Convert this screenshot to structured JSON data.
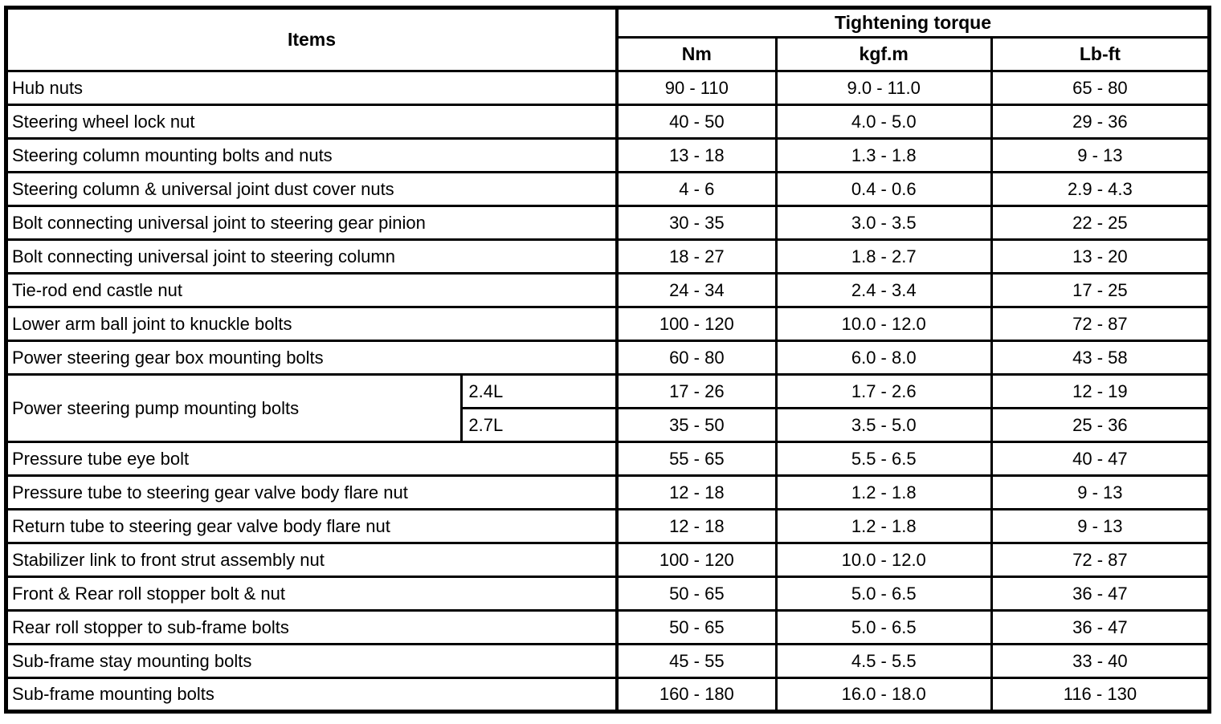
{
  "table": {
    "header": {
      "items_label": "Items",
      "torque_label": "Tightening torque",
      "units": [
        "Nm",
        "kgf.m",
        "Lb-ft"
      ]
    },
    "rows": [
      {
        "item": "Hub nuts",
        "values": [
          "90 - 110",
          "9.0 - 11.0",
          "65 - 80"
        ]
      },
      {
        "item": "Steering wheel lock nut",
        "values": [
          "40 - 50",
          "4.0 - 5.0",
          "29 - 36"
        ]
      },
      {
        "item": "Steering column mounting bolts and nuts",
        "values": [
          "13 - 18",
          "1.3 - 1.8",
          "9 - 13"
        ]
      },
      {
        "item": "Steering column & universal joint dust cover nuts",
        "values": [
          "4 - 6",
          "0.4 - 0.6",
          "2.9 - 4.3"
        ]
      },
      {
        "item": "Bolt connecting universal joint to steering gear pinion",
        "values": [
          "30 - 35",
          "3.0 - 3.5",
          "22 - 25"
        ]
      },
      {
        "item": "Bolt connecting universal joint to steering column",
        "values": [
          "18 - 27",
          "1.8 - 2.7",
          "13 - 20"
        ]
      },
      {
        "item": "Tie-rod end castle nut",
        "values": [
          "24 - 34",
          "2.4 - 3.4",
          "17 - 25"
        ]
      },
      {
        "item": "Lower arm ball joint to knuckle bolts",
        "values": [
          "100 - 120",
          "10.0 - 12.0",
          "72 - 87"
        ]
      },
      {
        "item": "Power steering gear box mounting bolts",
        "values": [
          "60 - 80",
          "6.0 - 8.0",
          "43 - 58"
        ]
      },
      {
        "item": "Power steering pump mounting bolts",
        "item_rowspan": 2,
        "variant": "2.4L",
        "values": [
          "17 - 26",
          "1.7 - 2.6",
          "12 - 19"
        ]
      },
      {
        "variant": "2.7L",
        "values": [
          "35 - 50",
          "3.5 - 5.0",
          "25 - 36"
        ]
      },
      {
        "item": "Pressure tube eye bolt",
        "values": [
          "55 - 65",
          "5.5 - 6.5",
          "40 - 47"
        ]
      },
      {
        "item": "Pressure tube to steering gear valve body flare nut",
        "values": [
          "12 - 18",
          "1.2 - 1.8",
          "9 - 13"
        ]
      },
      {
        "item": "Return tube to steering gear valve body flare nut",
        "values": [
          "12 - 18",
          "1.2 - 1.8",
          "9 - 13"
        ]
      },
      {
        "item": "Stabilizer link to front strut assembly nut",
        "values": [
          "100 - 120",
          "10.0 - 12.0",
          "72 - 87"
        ]
      },
      {
        "item": "Front & Rear roll stopper bolt & nut",
        "values": [
          "50 - 65",
          "5.0 - 6.5",
          "36 - 47"
        ]
      },
      {
        "item": "Rear roll stopper to sub-frame bolts",
        "values": [
          "50 - 65",
          "5.0 - 6.5",
          "36 - 47"
        ]
      },
      {
        "item": "Sub-frame stay mounting bolts",
        "values": [
          "45 - 55",
          "4.5 - 5.5",
          "33 - 40"
        ]
      },
      {
        "item": "Sub-frame mounting bolts",
        "values": [
          "160 - 180",
          "16.0 - 18.0",
          "116 - 130"
        ]
      }
    ]
  },
  "colors": {
    "border": "#000000",
    "background": "#ffffff",
    "text": "#000000"
  }
}
